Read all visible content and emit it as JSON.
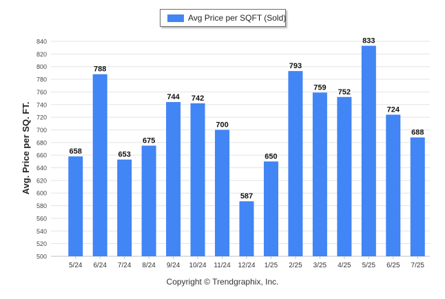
{
  "chart_data": {
    "type": "bar",
    "categories": [
      "5/24",
      "6/24",
      "7/24",
      "8/24",
      "9/24",
      "10/24",
      "11/24",
      "12/24",
      "1/25",
      "2/25",
      "3/25",
      "4/25",
      "5/25",
      "6/25",
      "7/25"
    ],
    "series": [
      {
        "name": "Avg Price per SQFT (Sold)",
        "values": [
          658,
          788,
          653,
          675,
          744,
          742,
          700,
          587,
          650,
          793,
          759,
          752,
          833,
          724,
          688
        ]
      }
    ],
    "ylabel": "Avg. Price per SQ. FT.",
    "xlabel": "",
    "ylim": [
      500,
      840
    ],
    "yticks": [
      500,
      520,
      540,
      560,
      580,
      600,
      620,
      640,
      660,
      680,
      700,
      720,
      740,
      760,
      780,
      800,
      820,
      840
    ],
    "grid": true,
    "legend_position": "top-center",
    "bar_color": "#4285f4",
    "data_labels": true
  },
  "footer": {
    "copyright": "Copyright © Trendgraphix, Inc."
  }
}
